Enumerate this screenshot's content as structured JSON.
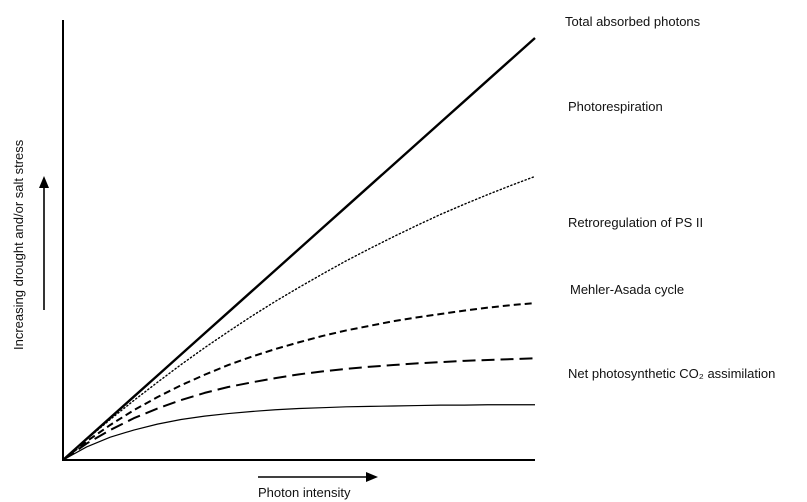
{
  "chart_data": {
    "type": "line",
    "title": "",
    "xlabel": "Photon intensity",
    "ylabel": "Increasing drought and/or salt stress",
    "xlim": [
      0,
      1
    ],
    "ylim": [
      0,
      1
    ],
    "grid": false,
    "legend": "none",
    "x": [
      0,
      0.05,
      0.1,
      0.15,
      0.2,
      0.25,
      0.3,
      0.35,
      0.4,
      0.45,
      0.5,
      0.55,
      0.6,
      0.65,
      0.7,
      0.75,
      0.8,
      0.85,
      0.9,
      0.95,
      1.0
    ],
    "series": [
      {
        "name": "Total absorbed photons",
        "style": "solid-thick",
        "values": [
          0,
          0.05,
          0.1,
          0.15,
          0.2,
          0.25,
          0.3,
          0.35,
          0.4,
          0.45,
          0.5,
          0.55,
          0.6,
          0.65,
          0.7,
          0.75,
          0.8,
          0.85,
          0.9,
          0.95,
          1.0
        ]
      },
      {
        "name": "Photorespiration",
        "style": "dotted",
        "values": [
          0,
          0.049,
          0.096,
          0.141,
          0.184,
          0.226,
          0.266,
          0.304,
          0.341,
          0.376,
          0.409,
          0.441,
          0.472,
          0.501,
          0.529,
          0.556,
          0.582,
          0.606,
          0.629,
          0.651,
          0.672
        ]
      },
      {
        "name": "Retroregulation of PS II",
        "style": "short-dash",
        "values": [
          0,
          0.044,
          0.083,
          0.118,
          0.149,
          0.177,
          0.202,
          0.225,
          0.245,
          0.263,
          0.279,
          0.294,
          0.307,
          0.318,
          0.329,
          0.338,
          0.346,
          0.354,
          0.361,
          0.367,
          0.372
        ]
      },
      {
        "name": "Mehler-Asada cycle",
        "style": "long-dash",
        "values": [
          0,
          0.039,
          0.071,
          0.099,
          0.122,
          0.142,
          0.159,
          0.173,
          0.184,
          0.194,
          0.203,
          0.21,
          0.216,
          0.221,
          0.225,
          0.229,
          0.232,
          0.235,
          0.237,
          0.239,
          0.241
        ]
      },
      {
        "name": "Net photosynthetic CO₂ assimilation",
        "style": "solid-thin",
        "values": [
          0,
          0.031,
          0.054,
          0.071,
          0.085,
          0.096,
          0.104,
          0.11,
          0.115,
          0.119,
          0.122,
          0.124,
          0.126,
          0.127,
          0.128,
          0.129,
          0.13,
          0.13,
          0.131,
          0.131,
          0.131
        ]
      }
    ],
    "annotations": [
      "Total absorbed photons",
      "Photorespiration",
      "Retroregulation of PS II",
      "Mehler-Asada cycle",
      "Net photosynthetic CO₂ assimilation"
    ]
  }
}
